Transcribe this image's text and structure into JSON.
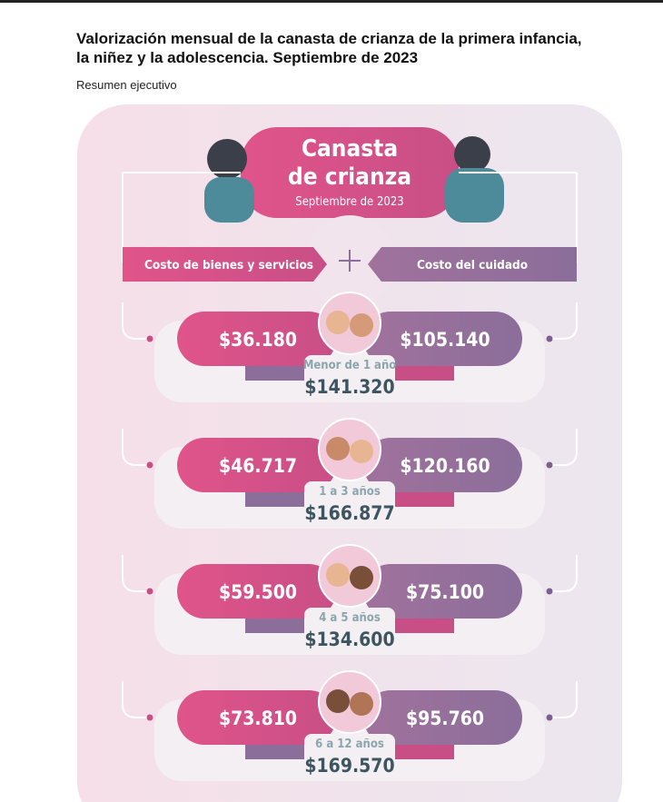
{
  "header": {
    "title": "Valorización mensual de la canasta de crianza de la primera infancia, la niñez y la adolescencia. Septiembre de 2023",
    "subtitle": "Resumen ejecutivo"
  },
  "card": {
    "title_line1": "Canasta",
    "title_line2": "de crianza",
    "date": "Septiembre de 2023",
    "left_heading": "Costo de bienes y servicios",
    "right_heading": "Costo del cuidado",
    "rows": [
      {
        "age": "Menor de 1 año",
        "goods": "$36.180",
        "care": "$105.140",
        "total": "$141.320"
      },
      {
        "age": "1 a 3 años",
        "goods": "$46.717",
        "care": "$120.160",
        "total": "$166.877"
      },
      {
        "age": "4 a 5 años",
        "goods": "$59.500",
        "care": "$75.100",
        "total": "$134.600"
      },
      {
        "age": "6 a 12 años",
        "goods": "$73.810",
        "care": "$95.760",
        "total": "$169.570"
      }
    ]
  }
}
